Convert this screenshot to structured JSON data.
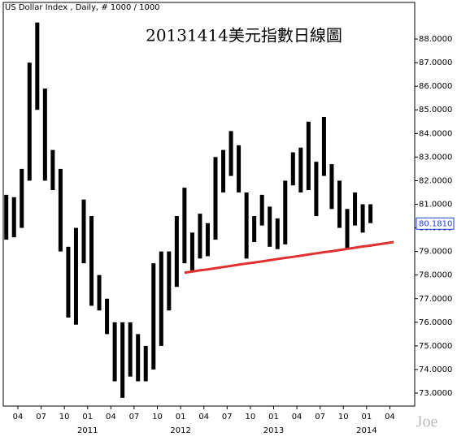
{
  "chart_data": {
    "type": "range_bar",
    "header": "US Dollar Index , Daily, # 1000 / 1000",
    "title": "20131414美元指數日線圖",
    "watermark": "Joe",
    "color": "#000000",
    "categories": [
      null,
      null,
      "04",
      null,
      null,
      "07",
      null,
      null,
      "10",
      null,
      null,
      "01",
      null,
      null,
      "04",
      null,
      null,
      "07",
      null,
      null,
      "10",
      null,
      null,
      "01",
      null,
      null,
      "04",
      null,
      null,
      "07",
      null,
      null,
      "10",
      null,
      null,
      "01",
      null,
      null,
      "04",
      null,
      null,
      "07",
      null,
      null,
      "10",
      null,
      null,
      "01",
      null,
      null,
      "04"
    ],
    "years": [
      "2011",
      "2012",
      "2013",
      "2014"
    ],
    "high": [
      81.4,
      81.3,
      82.5,
      87.0,
      88.7,
      85.9,
      83.3,
      82.5,
      79.2,
      80.0,
      81.2,
      80.5,
      78.0,
      77.0,
      76.0,
      76.0,
      76.0,
      75.5,
      75.0,
      78.5,
      79.0,
      79.0,
      80.5,
      81.7,
      79.8,
      80.6,
      80.2,
      83.0,
      83.3,
      84.1,
      83.5,
      81.5,
      80.5,
      81.4,
      80.9,
      80.4,
      82.0,
      83.2,
      83.4,
      84.5,
      82.8,
      84.7,
      82.7,
      82.0,
      80.8,
      81.5,
      81.0,
      81.0,
      null,
      null,
      null
    ],
    "low": [
      79.5,
      79.6,
      80.0,
      82.0,
      85.0,
      82.0,
      81.6,
      79.0,
      76.2,
      75.9,
      78.5,
      76.7,
      76.5,
      75.5,
      73.5,
      72.8,
      73.7,
      73.5,
      73.5,
      74.0,
      75.0,
      76.5,
      77.5,
      78.5,
      78.2,
      78.7,
      78.8,
      79.5,
      81.5,
      82.2,
      81.5,
      78.7,
      79.4,
      80.1,
      79.2,
      79.1,
      79.3,
      81.8,
      81.5,
      81.6,
      80.5,
      82.2,
      80.8,
      80.0,
      79.1,
      80.1,
      79.8,
      80.2,
      null,
      null,
      null
    ],
    "trendline": {
      "color": "#e03030",
      "values": [
        null,
        null,
        null,
        null,
        null,
        null,
        null,
        null,
        null,
        null,
        null,
        null,
        null,
        null,
        null,
        null,
        null,
        null,
        null,
        null,
        null,
        null,
        null,
        78.1,
        78.15,
        78.2,
        78.24,
        78.29,
        78.34,
        78.39,
        78.44,
        78.49,
        78.53,
        78.58,
        78.63,
        78.68,
        78.73,
        78.77,
        78.82,
        78.87,
        78.92,
        78.97,
        79.01,
        79.06,
        79.11,
        79.16,
        79.21,
        79.25,
        79.3,
        79.35,
        79.4
      ]
    },
    "last_value": {
      "value": 80.181,
      "label": "80.1810"
    },
    "ylim": [
      72.45,
      89.55
    ],
    "yticks": [
      {
        "value": 73,
        "label": "73.0000"
      },
      {
        "value": 74,
        "label": "74.0000"
      },
      {
        "value": 75,
        "label": "75.0000"
      },
      {
        "value": 76,
        "label": "76.0000"
      },
      {
        "value": 77,
        "label": "77.0000"
      },
      {
        "value": 78,
        "label": "78.0000"
      },
      {
        "value": 79,
        "label": "79.0000"
      },
      {
        "value": 80,
        "label": "80.0000"
      },
      {
        "value": 81,
        "label": "81.0000"
      },
      {
        "value": 82,
        "label": "82.0000"
      },
      {
        "value": 83,
        "label": "83.0000"
      },
      {
        "value": 84,
        "label": "84.0000"
      },
      {
        "value": 85,
        "label": "85.0000"
      },
      {
        "value": 86,
        "label": "86.0000"
      },
      {
        "value": 87,
        "label": "87.0000"
      },
      {
        "value": 88,
        "label": "88.0000"
      }
    ]
  }
}
